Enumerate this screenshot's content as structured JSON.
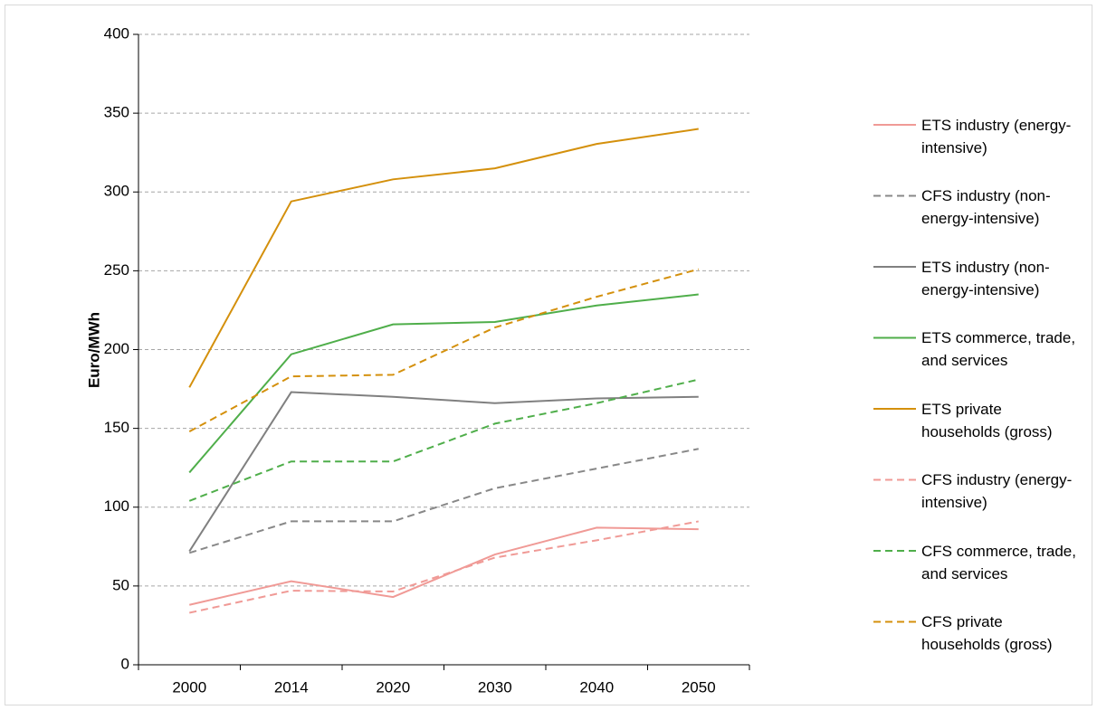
{
  "chart_data": {
    "type": "line",
    "y_label": "Euro/MWh",
    "categories": [
      "2000",
      "2014",
      "2020",
      "2030",
      "2040",
      "2050"
    ],
    "ylim": [
      0,
      400
    ],
    "yticks": [
      0,
      50,
      100,
      150,
      200,
      250,
      300,
      350,
      400
    ],
    "grid": true,
    "legend": "right",
    "series": [
      {
        "name": "ETS industry (energy-intensive)",
        "color": "#f09a96",
        "dash": "solid",
        "values": [
          38,
          53,
          43,
          70,
          87,
          86
        ]
      },
      {
        "name": "CFS industry (non-energy-intensive)",
        "color": "#888888",
        "dash": "dashed",
        "values": [
          71,
          91,
          91,
          112,
          124.5,
          137
        ]
      },
      {
        "name": "ETS industry (non-energy-intensive)",
        "color": "#808080",
        "dash": "solid",
        "values": [
          72,
          173,
          170,
          166,
          169,
          170
        ]
      },
      {
        "name": "ETS commerce, trade, and services",
        "color": "#4fae4a",
        "dash": "solid",
        "values": [
          122,
          197,
          216,
          217.5,
          228,
          235
        ]
      },
      {
        "name": "ETS private households (gross)",
        "color": "#d4900c",
        "dash": "solid",
        "values": [
          176,
          294,
          308,
          315,
          330.5,
          340
        ]
      },
      {
        "name": "CFS industry (energy-intensive)",
        "color": "#f09a96",
        "dash": "dashed",
        "values": [
          33,
          47,
          46.5,
          68,
          79,
          91
        ]
      },
      {
        "name": "CFS commerce, trade, and services",
        "color": "#4fae4a",
        "dash": "dashed",
        "values": [
          104,
          129,
          129,
          153,
          166,
          181
        ]
      },
      {
        "name": "CFS private households (gross)",
        "color": "#d4900c",
        "dash": "dashed",
        "values": [
          148,
          183,
          184,
          214,
          233.5,
          251
        ]
      }
    ]
  }
}
